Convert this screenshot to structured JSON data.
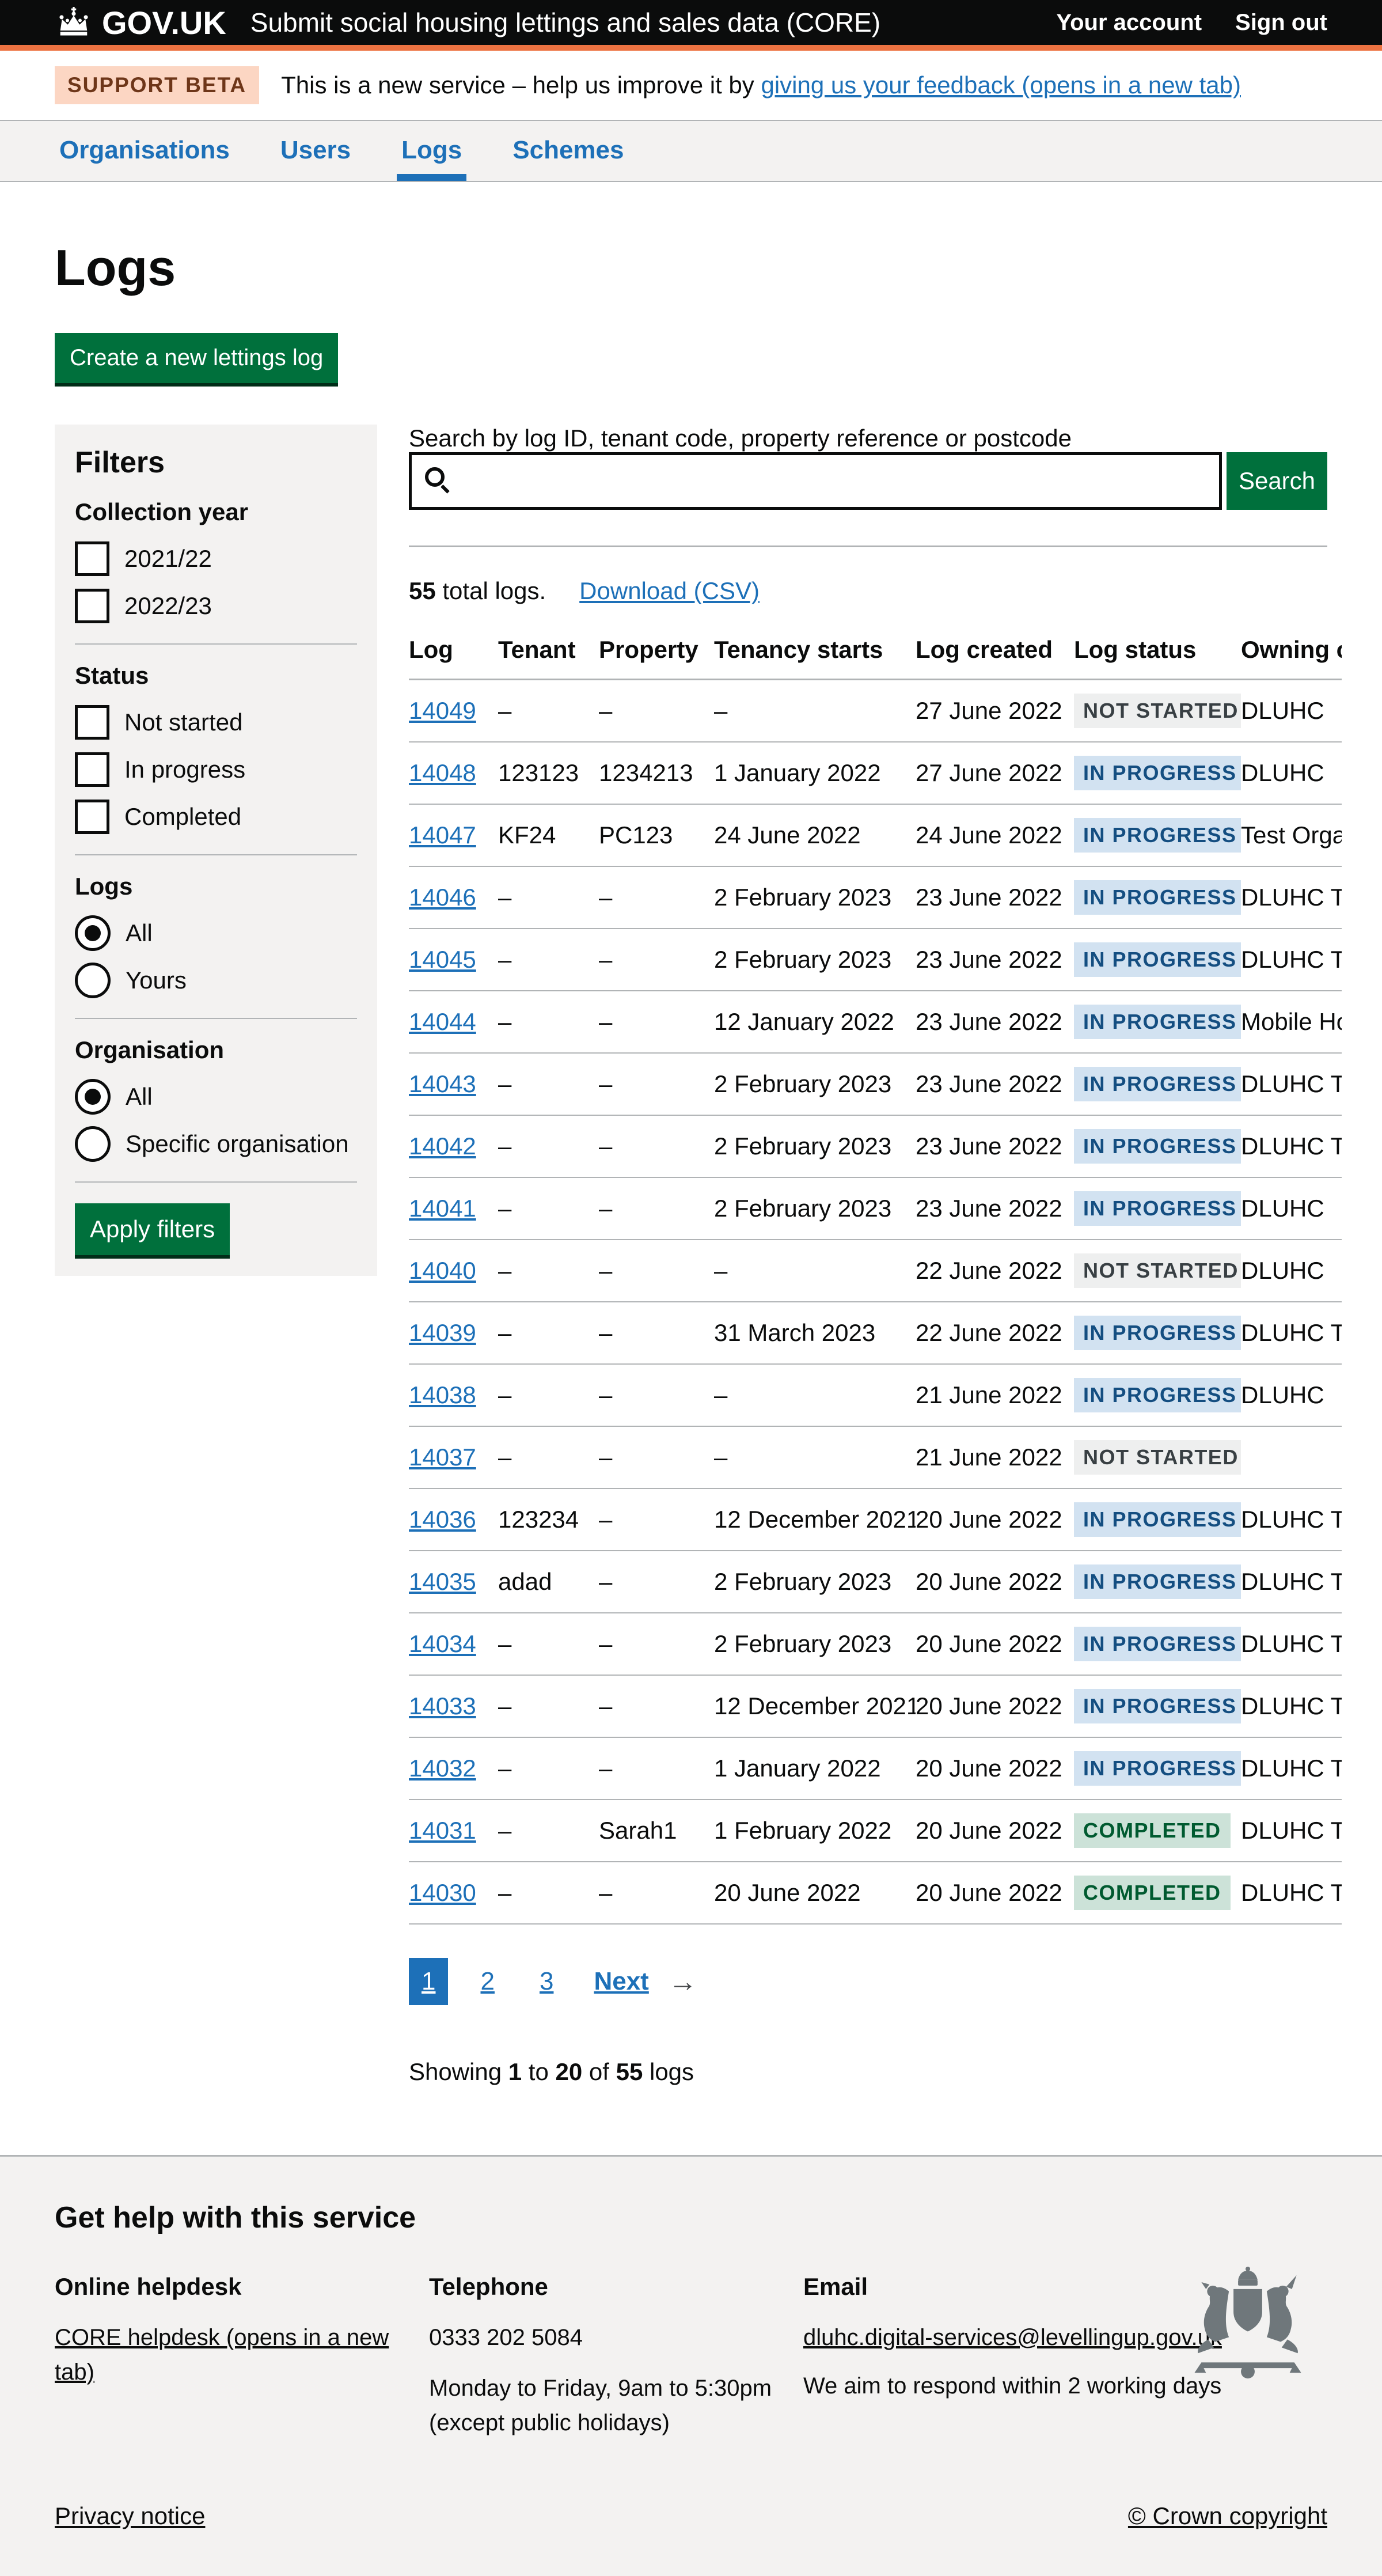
{
  "colors": {
    "header_bg": "#0b0c0c",
    "header_accent": "#ed7342",
    "link_blue": "#1d70b8",
    "button_green": "#00703c",
    "panel_grey": "#f3f2f1",
    "tag_grey_bg": "#eeefef",
    "tag_grey_text": "#383f43",
    "tag_blue_bg": "#d2e2f1",
    "tag_blue_text": "#144e81",
    "tag_green_bg": "#cce2d8",
    "tag_green_text": "#005a30"
  },
  "header": {
    "logo": "GOV.UK",
    "service_name": "Submit social housing lettings and sales data (CORE)",
    "account_link": "Your account",
    "signout_link": "Sign out"
  },
  "phase_banner": {
    "tag": "SUPPORT BETA",
    "text": "This is a new service – help us improve it by ",
    "feedback_link": "giving us your feedback (opens in a new tab)"
  },
  "nav": {
    "items": [
      {
        "label": "Organisations"
      },
      {
        "label": "Users"
      },
      {
        "label": "Logs",
        "active": true
      },
      {
        "label": "Schemes"
      }
    ]
  },
  "page": {
    "title": "Logs",
    "create_button": "Create a new lettings log"
  },
  "filters": {
    "title": "Filters",
    "collection_year": {
      "label": "Collection year",
      "options": [
        "2021/22",
        "2022/23"
      ]
    },
    "status": {
      "label": "Status",
      "options": [
        "Not started",
        "In progress",
        "Completed"
      ]
    },
    "logs": {
      "label": "Logs",
      "options": [
        "All",
        "Yours"
      ],
      "selected": "All"
    },
    "organisation": {
      "label": "Organisation",
      "options": [
        "All",
        "Specific organisation"
      ],
      "selected": "All"
    },
    "apply_button": "Apply filters"
  },
  "search": {
    "label": "Search by log ID, tenant code, property reference or postcode",
    "value": "",
    "button": "Search"
  },
  "results": {
    "total": "55",
    "total_suffix": " total logs.",
    "download_link": "Download (CSV)"
  },
  "table": {
    "columns": [
      "Log",
      "Tenant",
      "Property",
      "Tenancy starts",
      "Log created",
      "Log status",
      "Owning organisation"
    ],
    "rows": [
      {
        "log": "14049",
        "tenant": "–",
        "property": "–",
        "tenancy_starts": "–",
        "log_created": "27 June 2022",
        "status": "NOT STARTED",
        "status_color": "grey",
        "owning": "DLUHC"
      },
      {
        "log": "14048",
        "tenant": "123123",
        "property": "1234213",
        "tenancy_starts": "1 January 2022",
        "log_created": "27 June 2022",
        "status": "IN PROGRESS",
        "status_color": "blue",
        "owning": "DLUHC"
      },
      {
        "log": "14047",
        "tenant": "KF24",
        "property": "PC123",
        "tenancy_starts": "24 June 2022",
        "log_created": "24 June 2022",
        "status": "IN PROGRESS",
        "status_color": "blue",
        "owning": "Test Organi"
      },
      {
        "log": "14046",
        "tenant": "–",
        "property": "–",
        "tenancy_starts": "2 February 2023",
        "log_created": "23 June 2022",
        "status": "IN PROGRESS",
        "status_color": "blue",
        "owning": "DLUHC Tes"
      },
      {
        "log": "14045",
        "tenant": "–",
        "property": "–",
        "tenancy_starts": "2 February 2023",
        "log_created": "23 June 2022",
        "status": "IN PROGRESS",
        "status_color": "blue",
        "owning": "DLUHC Tes"
      },
      {
        "log": "14044",
        "tenant": "–",
        "property": "–",
        "tenancy_starts": "12 January 2022",
        "log_created": "23 June 2022",
        "status": "IN PROGRESS",
        "status_color": "blue",
        "owning": "Mobile Hou"
      },
      {
        "log": "14043",
        "tenant": "–",
        "property": "–",
        "tenancy_starts": "2 February 2023",
        "log_created": "23 June 2022",
        "status": "IN PROGRESS",
        "status_color": "blue",
        "owning": "DLUHC Tes"
      },
      {
        "log": "14042",
        "tenant": "–",
        "property": "–",
        "tenancy_starts": "2 February 2023",
        "log_created": "23 June 2022",
        "status": "IN PROGRESS",
        "status_color": "blue",
        "owning": "DLUHC Tes"
      },
      {
        "log": "14041",
        "tenant": "–",
        "property": "–",
        "tenancy_starts": "2 February 2023",
        "log_created": "23 June 2022",
        "status": "IN PROGRESS",
        "status_color": "blue",
        "owning": "DLUHC"
      },
      {
        "log": "14040",
        "tenant": "–",
        "property": "–",
        "tenancy_starts": "–",
        "log_created": "22 June 2022",
        "status": "NOT STARTED",
        "status_color": "grey",
        "owning": "DLUHC"
      },
      {
        "log": "14039",
        "tenant": "–",
        "property": "–",
        "tenancy_starts": "31 March 2023",
        "log_created": "22 June 2022",
        "status": "IN PROGRESS",
        "status_color": "blue",
        "owning": "DLUHC Tes"
      },
      {
        "log": "14038",
        "tenant": "–",
        "property": "–",
        "tenancy_starts": "–",
        "log_created": "21 June 2022",
        "status": "IN PROGRESS",
        "status_color": "blue",
        "owning": "DLUHC"
      },
      {
        "log": "14037",
        "tenant": "–",
        "property": "–",
        "tenancy_starts": "–",
        "log_created": "21 June 2022",
        "status": "NOT STARTED",
        "status_color": "grey",
        "owning": ""
      },
      {
        "log": "14036",
        "tenant": "123234",
        "property": "–",
        "tenancy_starts": "12 December 2021",
        "log_created": "20 June 2022",
        "status": "IN PROGRESS",
        "status_color": "blue",
        "owning": "DLUHC Tes"
      },
      {
        "log": "14035",
        "tenant": "adad",
        "property": "–",
        "tenancy_starts": "2 February 2023",
        "log_created": "20 June 2022",
        "status": "IN PROGRESS",
        "status_color": "blue",
        "owning": "DLUHC Tes"
      },
      {
        "log": "14034",
        "tenant": "–",
        "property": "–",
        "tenancy_starts": "2 February 2023",
        "log_created": "20 June 2022",
        "status": "IN PROGRESS",
        "status_color": "blue",
        "owning": "DLUHC Tes"
      },
      {
        "log": "14033",
        "tenant": "–",
        "property": "–",
        "tenancy_starts": "12 December 2021",
        "log_created": "20 June 2022",
        "status": "IN PROGRESS",
        "status_color": "blue",
        "owning": "DLUHC Tes"
      },
      {
        "log": "14032",
        "tenant": "–",
        "property": "–",
        "tenancy_starts": "1 January 2022",
        "log_created": "20 June 2022",
        "status": "IN PROGRESS",
        "status_color": "blue",
        "owning": "DLUHC Tes"
      },
      {
        "log": "14031",
        "tenant": "–",
        "property": "Sarah1",
        "tenancy_starts": "1 February 2022",
        "log_created": "20 June 2022",
        "status": "COMPLETED",
        "status_color": "green",
        "owning": "DLUHC Tes"
      },
      {
        "log": "14030",
        "tenant": "–",
        "property": "–",
        "tenancy_starts": "20 June 2022",
        "log_created": "20 June 2022",
        "status": "COMPLETED",
        "status_color": "green",
        "owning": "DLUHC Tes"
      }
    ]
  },
  "pagination": {
    "pages": [
      "1",
      "2",
      "3"
    ],
    "current": "1",
    "next_label": "Next",
    "next_arrow": "→"
  },
  "showing": {
    "p1": "Showing ",
    "b1": "1",
    "p2": " to ",
    "b2": "20",
    "p3": " of ",
    "b3": "55",
    "p4": " logs"
  },
  "footer": {
    "heading": "Get help with this service",
    "helpdesk": {
      "title": "Online helpdesk",
      "link": "CORE helpdesk (opens in a new tab)"
    },
    "telephone": {
      "title": "Telephone",
      "number": "0333 202 5084",
      "hours1": "Monday to Friday, 9am to 5:30pm",
      "hours2": "(except public holidays)"
    },
    "email": {
      "title": "Email",
      "address": "dluhc.digital-services@levellingup.gov.uk",
      "note": "We aim to respond within 2 working days"
    },
    "privacy_link": "Privacy notice",
    "copyright": "© Crown copyright"
  }
}
